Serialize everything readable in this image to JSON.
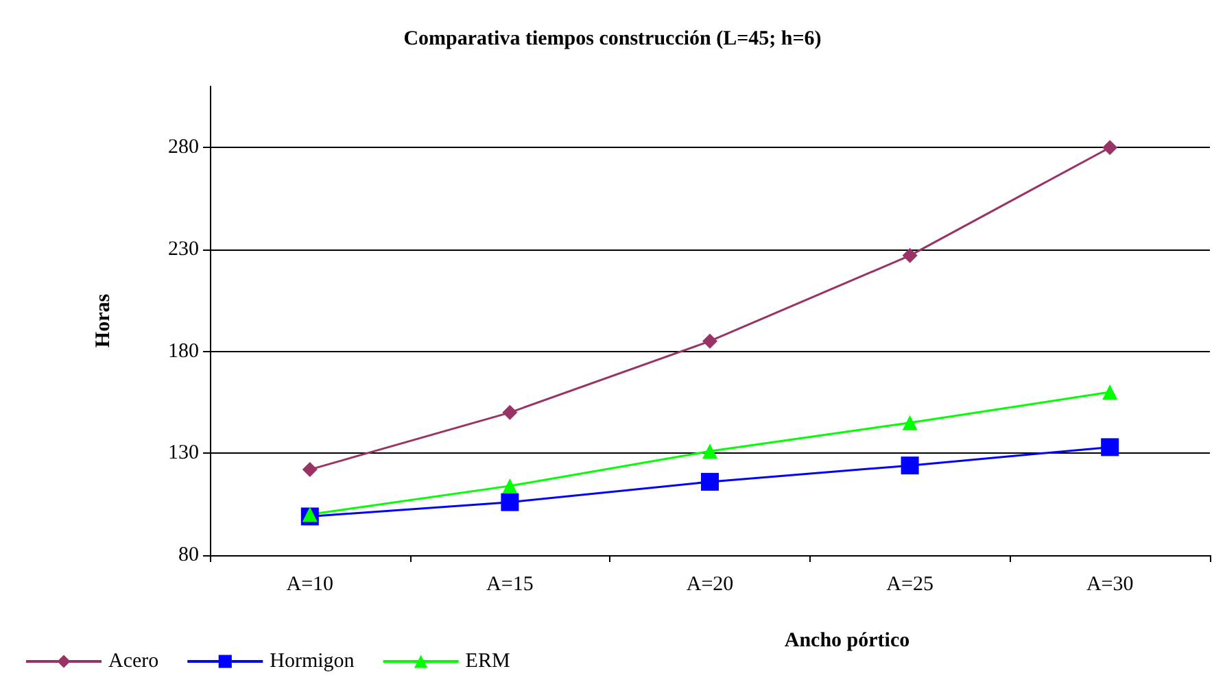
{
  "chart_data": {
    "type": "line",
    "title": "Comparativa tiempos construcción (L=45; h=6)",
    "xlabel": "Ancho pórtico",
    "ylabel": "Horas",
    "categories": [
      "A=10",
      "A=15",
      "A=20",
      "A=25",
      "A=30"
    ],
    "series": [
      {
        "name": "Acero",
        "color": "#993366",
        "marker": "diamond",
        "values": [
          122,
          150,
          185,
          227,
          280
        ]
      },
      {
        "name": "Hormigon",
        "color": "#0000ff",
        "marker": "square",
        "values": [
          99,
          106,
          116,
          124,
          133
        ]
      },
      {
        "name": "ERM",
        "color": "#00ff00",
        "marker": "triangle",
        "values": [
          100,
          114,
          131,
          145,
          160
        ]
      }
    ],
    "ylim": [
      80,
      310
    ],
    "yticks": [
      80,
      130,
      180,
      230,
      280
    ],
    "grid": "y",
    "legend": "bottom left",
    "line_style": "solid"
  }
}
